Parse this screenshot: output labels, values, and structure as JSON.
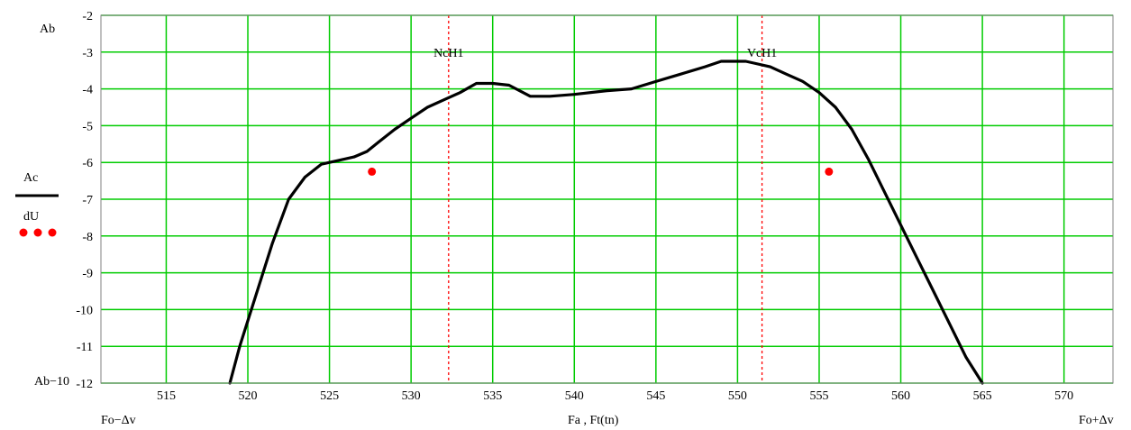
{
  "chart_data": {
    "type": "line",
    "x_range": [
      511,
      573
    ],
    "y_range": [
      -12,
      -2
    ],
    "x_ticks": [
      "515",
      "520",
      "525",
      "530",
      "535",
      "540",
      "545",
      "550",
      "555",
      "560",
      "565",
      "570"
    ],
    "y_ticks": [
      "-2",
      "-3",
      "-4",
      "-5",
      "-6",
      "-7",
      "-8",
      "-9",
      "-10",
      "-11",
      "-12"
    ],
    "grid": true,
    "grid_color": "#00cc00",
    "y_top_label": "Ab",
    "y_bottom_label": "Ab−10",
    "x_left_label": "Fo−Δv",
    "x_center_label": "Fa , Ft(tn)",
    "x_right_label": "Fo+Δv",
    "legend": {
      "position": "left",
      "entries": [
        {
          "name": "Ac",
          "style": "solid",
          "color": "#000000"
        },
        {
          "name": "dU",
          "style": "dots",
          "color": "#ff0000"
        }
      ]
    },
    "markers": [
      {
        "name": "NcH1",
        "x": 532.3,
        "color": "#ff0000",
        "style": "dashed"
      },
      {
        "name": "VcH1",
        "x": 551.5,
        "color": "#ff0000",
        "style": "dashed"
      }
    ],
    "series": [
      {
        "name": "Ac",
        "color": "#000000",
        "x": [
          518.9,
          519.5,
          520.5,
          521.5,
          522.5,
          523.5,
          524.5,
          525.5,
          526.5,
          527.3,
          528.0,
          529.0,
          530.0,
          531.0,
          532.0,
          533.0,
          534.0,
          535.0,
          536.0,
          537.3,
          538.5,
          540.0,
          542.0,
          543.5,
          545.0,
          546.5,
          548.0,
          549.0,
          550.0,
          550.5,
          551.0,
          552.0,
          553.0,
          554.0,
          555.0,
          556.0,
          557.0,
          558.0,
          559.0,
          560.0,
          561.0,
          562.0,
          563.0,
          564.0,
          565.0
        ],
        "y": [
          -12.0,
          -11.0,
          -9.6,
          -8.2,
          -7.0,
          -6.4,
          -6.05,
          -5.95,
          -5.85,
          -5.7,
          -5.45,
          -5.1,
          -4.8,
          -4.5,
          -4.3,
          -4.1,
          -3.85,
          -3.85,
          -3.9,
          -4.2,
          -4.2,
          -4.15,
          -4.05,
          -4.0,
          -3.8,
          -3.6,
          -3.4,
          -3.25,
          -3.25,
          -3.25,
          -3.3,
          -3.4,
          -3.6,
          -3.8,
          -4.1,
          -4.5,
          -5.1,
          -5.9,
          -6.8,
          -7.7,
          -8.6,
          -9.5,
          -10.4,
          -11.3,
          -12.0
        ]
      },
      {
        "name": "dU",
        "color": "#ff0000",
        "x": [
          527.6,
          555.6
        ],
        "y": [
          -6.25,
          -6.25
        ]
      }
    ]
  }
}
